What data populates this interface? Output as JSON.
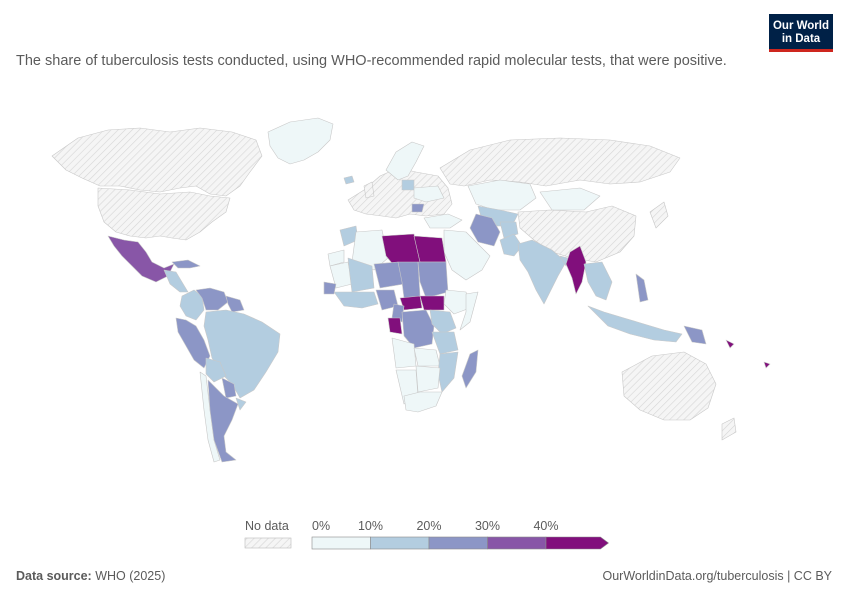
{
  "logo": {
    "line1": "Our World",
    "line2": "in Data"
  },
  "subtitle": "The share of tuberculosis tests conducted, using WHO-recommended rapid molecular tests, that were positive.",
  "legend": {
    "no_data_label": "No data",
    "ticks": [
      "0%",
      "10%",
      "20%",
      "30%",
      "40%"
    ],
    "bins": [
      {
        "from": 0,
        "to": 10,
        "color": "#eef7f8"
      },
      {
        "from": 10,
        "to": 20,
        "color": "#b3cde0"
      },
      {
        "from": 20,
        "to": 30,
        "color": "#8c96c6"
      },
      {
        "from": 30,
        "to": 40,
        "color": "#8856a7"
      },
      {
        "from": 40,
        "to": null,
        "color": "#810f7c"
      }
    ]
  },
  "colors": {
    "no_data": "#f2f2f2",
    "border": "#ffffff",
    "brand": "#002147",
    "brand_accent": "#ce261e"
  },
  "footer": {
    "source_label": "Data source:",
    "source_value": "WHO (2025)",
    "url": "OurWorldinData.org/tuberculosis | CC BY"
  }
}
